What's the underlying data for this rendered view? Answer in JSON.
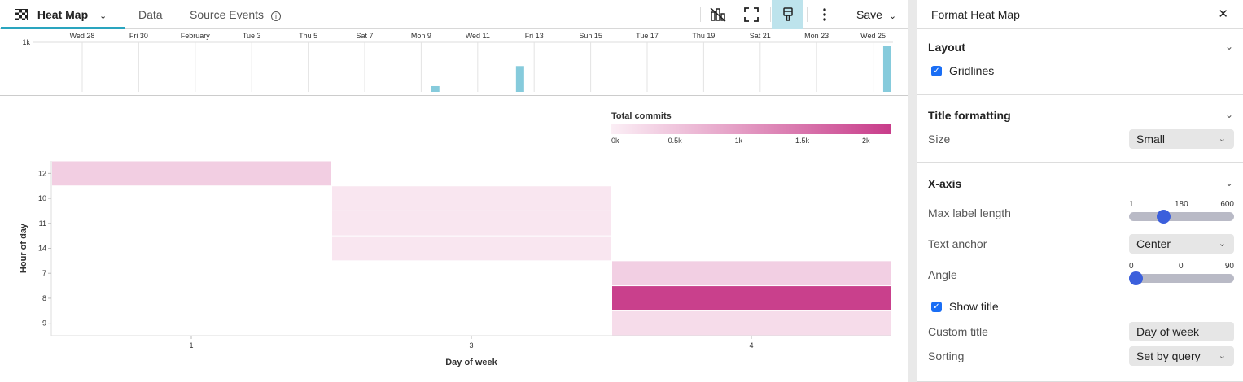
{
  "header": {
    "tabs": [
      {
        "label": "Heat Map",
        "active": true
      },
      {
        "label": "Data"
      },
      {
        "label": "Source Events"
      }
    ],
    "save_label": "Save",
    "accent": "#2aa5bf"
  },
  "timeline": {
    "y_tick": "1k",
    "y_max": 1000,
    "tick_labels": [
      "Wed 28",
      "Fri 30",
      "February",
      "Tue 3",
      "Thu 5",
      "Sat 7",
      "Mon 9",
      "Wed 11",
      "Fri 13",
      "Sun 15",
      "Tue 17",
      "Thu 19",
      "Sat 21",
      "Mon 23",
      "Wed 25"
    ],
    "bars": [
      {
        "date": "Feb 9",
        "value": 115
      },
      {
        "date": "Feb 12",
        "value": 520
      },
      {
        "date": "Feb 25",
        "value": 920
      }
    ],
    "bar_color": "#86cbdc"
  },
  "chart_data": {
    "type": "heatmap",
    "xlabel": "Day of week",
    "ylabel": "Hour of day",
    "x_categories": [
      "1",
      "3",
      "4"
    ],
    "y_categories": [
      "12",
      "10",
      "11",
      "14",
      "7",
      "8",
      "9"
    ],
    "cells": [
      {
        "x": "1",
        "y": "12",
        "value": 400
      },
      {
        "x": "3",
        "y": "10",
        "value": 100
      },
      {
        "x": "3",
        "y": "11",
        "value": 100
      },
      {
        "x": "3",
        "y": "14",
        "value": 100
      },
      {
        "x": "4",
        "y": "7",
        "value": 380
      },
      {
        "x": "4",
        "y": "8",
        "value": 2150
      },
      {
        "x": "4",
        "y": "9",
        "value": 220
      }
    ],
    "legend": {
      "title": "Total commits",
      "ticks": [
        "0k",
        "0.5k",
        "1k",
        "1.5k",
        "2k"
      ],
      "range": [
        0,
        2200
      ],
      "color_low": "#fbeef5",
      "color_high": "#c83c8a",
      "placement": "top-right"
    },
    "gridlines": true
  },
  "panel": {
    "title": "Format Heat Map",
    "layout": {
      "title": "Layout",
      "gridlines_label": "Gridlines",
      "gridlines": true
    },
    "title_formatting": {
      "title": "Title formatting",
      "size_label": "Size",
      "size_value": "Small"
    },
    "x_axis": {
      "title": "X-axis",
      "max_label_length_label": "Max label length",
      "max_label_length": {
        "min": "1",
        "value": "180",
        "max": "600",
        "fraction": 0.3
      },
      "text_anchor_label": "Text anchor",
      "text_anchor_value": "Center",
      "angle_label": "Angle",
      "angle": {
        "min": "0",
        "value": "0",
        "max": "90",
        "fraction": 0
      },
      "show_title_label": "Show title",
      "show_title": true,
      "custom_title_label": "Custom title",
      "custom_title_value": "Day of week",
      "sorting_label": "Sorting",
      "sorting_value": "Set by query"
    }
  }
}
